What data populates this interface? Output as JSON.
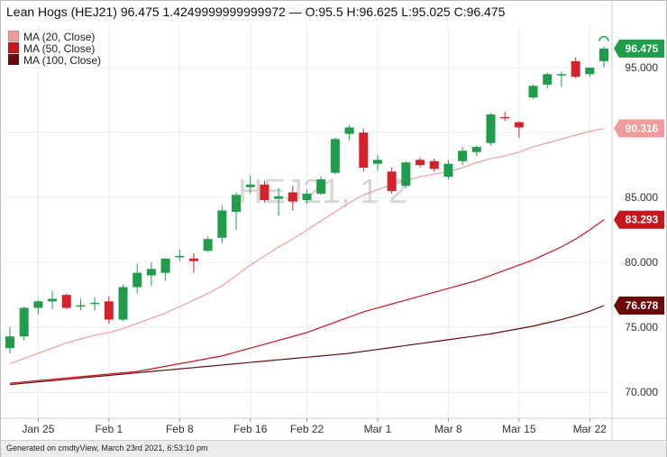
{
  "header": {
    "title": "Lean Hogs (HEJ21) 96.475 1.4249999999999972 — O:95.5 H:96.625 L:95.025 C:96.475"
  },
  "legend": [
    {
      "label": "MA (20, Close)",
      "color": "#f29b9b"
    },
    {
      "label": "MA (50, Close)",
      "color": "#c8161d"
    },
    {
      "label": "MA (100, Close)",
      "color": "#6b0a0a"
    }
  ],
  "watermark": "HEJ21, 1 2",
  "footer": {
    "text": "Generated on cmdtyView, March 23rd 2021, 6:53:10 pm"
  },
  "colors": {
    "up": "#1f9d4a",
    "down": "#d3222a",
    "last_price_badge": "#1f9d4a"
  },
  "chart_data": {
    "type": "candlestick",
    "title": "Lean Hogs (HEJ21)",
    "x_tick_labels": [
      "Jan 25",
      "Feb 1",
      "Feb 8",
      "Feb 16",
      "Feb 22",
      "Mar 1",
      "Mar 8",
      "Mar 15",
      "Mar 22"
    ],
    "y_ticks": [
      95.0,
      90.0,
      85.0,
      80.0,
      75.0,
      70.0
    ],
    "y_tick_labels": [
      "95.000",
      "90.000",
      "85.000",
      "80.000",
      "75.000",
      "70.000"
    ],
    "ylim": [
      68.0,
      98.2
    ],
    "candles": [
      {
        "date": "Jan 21",
        "o": 73.4,
        "h": 75.0,
        "l": 73.0,
        "c": 74.3
      },
      {
        "date": "Jan 22",
        "o": 74.3,
        "h": 76.6,
        "l": 74.0,
        "c": 76.5
      },
      {
        "date": "Jan 25",
        "o": 76.5,
        "h": 77.1,
        "l": 76.0,
        "c": 77.0
      },
      {
        "date": "Jan 26",
        "o": 77.0,
        "h": 77.8,
        "l": 76.4,
        "c": 77.2
      },
      {
        "date": "Jan 27",
        "o": 77.5,
        "h": 77.6,
        "l": 76.4,
        "c": 76.5
      },
      {
        "date": "Jan 28",
        "o": 76.7,
        "h": 77.2,
        "l": 76.3,
        "c": 76.7
      },
      {
        "date": "Jan 29",
        "o": 76.8,
        "h": 77.3,
        "l": 76.3,
        "c": 76.9
      },
      {
        "date": "Feb 1",
        "o": 77.0,
        "h": 77.4,
        "l": 75.3,
        "c": 75.6
      },
      {
        "date": "Feb 2",
        "o": 75.6,
        "h": 78.3,
        "l": 75.5,
        "c": 78.1
      },
      {
        "date": "Feb 3",
        "o": 78.1,
        "h": 79.9,
        "l": 77.6,
        "c": 79.2
      },
      {
        "date": "Feb 4",
        "o": 79.0,
        "h": 80.0,
        "l": 78.2,
        "c": 79.5
      },
      {
        "date": "Feb 5",
        "o": 79.2,
        "h": 80.3,
        "l": 78.6,
        "c": 80.3
      },
      {
        "date": "Feb 8",
        "o": 80.4,
        "h": 81.0,
        "l": 80.1,
        "c": 80.5
      },
      {
        "date": "Feb 9",
        "o": 80.3,
        "h": 80.7,
        "l": 79.2,
        "c": 80.1
      },
      {
        "date": "Feb 10",
        "o": 80.9,
        "h": 82.0,
        "l": 80.8,
        "c": 81.8
      },
      {
        "date": "Feb 11",
        "o": 81.9,
        "h": 84.4,
        "l": 81.5,
        "c": 84.0
      },
      {
        "date": "Feb 12",
        "o": 83.9,
        "h": 85.4,
        "l": 82.5,
        "c": 85.2
      },
      {
        "date": "Feb 16",
        "o": 85.8,
        "h": 86.7,
        "l": 85.3,
        "c": 86.0
      },
      {
        "date": "Feb 17",
        "o": 86.0,
        "h": 86.3,
        "l": 84.6,
        "c": 84.8
      },
      {
        "date": "Feb 18",
        "o": 84.9,
        "h": 85.7,
        "l": 83.6,
        "c": 85.1
      },
      {
        "date": "Feb 19",
        "o": 85.4,
        "h": 85.9,
        "l": 84.0,
        "c": 84.7
      },
      {
        "date": "Feb 22",
        "o": 84.8,
        "h": 85.6,
        "l": 84.5,
        "c": 85.3
      },
      {
        "date": "Feb 23",
        "o": 85.3,
        "h": 86.6,
        "l": 85.2,
        "c": 86.4
      },
      {
        "date": "Feb 24",
        "o": 86.9,
        "h": 89.6,
        "l": 86.8,
        "c": 89.5
      },
      {
        "date": "Feb 25",
        "o": 89.9,
        "h": 90.6,
        "l": 89.4,
        "c": 90.4
      },
      {
        "date": "Feb 26",
        "o": 90.0,
        "h": 90.3,
        "l": 87.0,
        "c": 87.3
      },
      {
        "date": "Mar 1",
        "o": 87.6,
        "h": 88.3,
        "l": 87.1,
        "c": 87.9
      },
      {
        "date": "Mar 2",
        "o": 87.0,
        "h": 87.3,
        "l": 85.3,
        "c": 85.5
      },
      {
        "date": "Mar 3",
        "o": 85.9,
        "h": 87.8,
        "l": 85.7,
        "c": 87.7
      },
      {
        "date": "Mar 4",
        "o": 87.9,
        "h": 88.1,
        "l": 87.3,
        "c": 87.5
      },
      {
        "date": "Mar 5",
        "o": 87.8,
        "h": 88.0,
        "l": 87.0,
        "c": 87.2
      },
      {
        "date": "Mar 8",
        "o": 86.6,
        "h": 87.9,
        "l": 86.4,
        "c": 87.6
      },
      {
        "date": "Mar 9",
        "o": 87.8,
        "h": 88.9,
        "l": 87.5,
        "c": 88.6
      },
      {
        "date": "Mar 10",
        "o": 88.5,
        "h": 89.0,
        "l": 88.2,
        "c": 88.9
      },
      {
        "date": "Mar 11",
        "o": 89.2,
        "h": 91.5,
        "l": 89.0,
        "c": 91.4
      },
      {
        "date": "Mar 12",
        "o": 91.2,
        "h": 91.6,
        "l": 90.9,
        "c": 91.1
      },
      {
        "date": "Mar 15",
        "o": 90.8,
        "h": 90.9,
        "l": 89.6,
        "c": 90.4
      },
      {
        "date": "Mar 16",
        "o": 92.7,
        "h": 93.7,
        "l": 92.6,
        "c": 93.6
      },
      {
        "date": "Mar 17",
        "o": 93.7,
        "h": 94.6,
        "l": 93.4,
        "c": 94.5
      },
      {
        "date": "Mar 18",
        "o": 94.4,
        "h": 94.7,
        "l": 93.5,
        "c": 94.5
      },
      {
        "date": "Mar 19",
        "o": 95.5,
        "h": 95.8,
        "l": 94.2,
        "c": 94.3
      },
      {
        "date": "Mar 22",
        "o": 94.5,
        "h": 95.0,
        "l": 94.3,
        "c": 95.0
      },
      {
        "date": "Mar 23",
        "o": 95.5,
        "h": 96.625,
        "l": 95.025,
        "c": 96.475
      }
    ],
    "series": [
      {
        "name": "MA (20, Close)",
        "color": "#f29b9b",
        "last_value": "90.316",
        "values": [
          72.2,
          72.6,
          73.0,
          73.4,
          73.8,
          74.1,
          74.4,
          74.6,
          74.9,
          75.3,
          75.7,
          76.1,
          76.6,
          77.1,
          77.6,
          78.2,
          79.0,
          79.8,
          80.5,
          81.2,
          81.8,
          82.5,
          83.2,
          83.9,
          84.6,
          85.2,
          85.6,
          86.0,
          86.3,
          86.6,
          86.8,
          87.0,
          87.3,
          87.7,
          88.0,
          88.2,
          88.5,
          88.9,
          89.2,
          89.5,
          89.8,
          90.1,
          90.316
        ]
      },
      {
        "name": "MA (50, Close)",
        "color": "#c8161d",
        "last_value": "83.293",
        "values": [
          70.7,
          70.8,
          70.9,
          71.0,
          71.1,
          71.2,
          71.3,
          71.4,
          71.5,
          71.6,
          71.8,
          72.0,
          72.2,
          72.4,
          72.6,
          72.8,
          73.1,
          73.4,
          73.7,
          74.0,
          74.3,
          74.6,
          75.0,
          75.4,
          75.8,
          76.2,
          76.5,
          76.8,
          77.1,
          77.4,
          77.7,
          78.0,
          78.3,
          78.6,
          79.0,
          79.4,
          79.8,
          80.2,
          80.7,
          81.2,
          81.8,
          82.5,
          83.293
        ]
      },
      {
        "name": "MA (100, Close)",
        "color": "#6b0a0a",
        "last_value": "76.678",
        "values": [
          70.6,
          70.7,
          70.8,
          70.9,
          71.0,
          71.1,
          71.2,
          71.3,
          71.4,
          71.5,
          71.6,
          71.7,
          71.8,
          71.9,
          72.0,
          72.1,
          72.2,
          72.3,
          72.4,
          72.5,
          72.6,
          72.7,
          72.8,
          72.9,
          73.0,
          73.15,
          73.3,
          73.45,
          73.6,
          73.75,
          73.9,
          74.05,
          74.2,
          74.35,
          74.5,
          74.7,
          74.9,
          75.1,
          75.35,
          75.6,
          75.9,
          76.25,
          76.678
        ]
      }
    ],
    "last_price": "96.475",
    "grid": true,
    "legend_position": "top-left"
  }
}
